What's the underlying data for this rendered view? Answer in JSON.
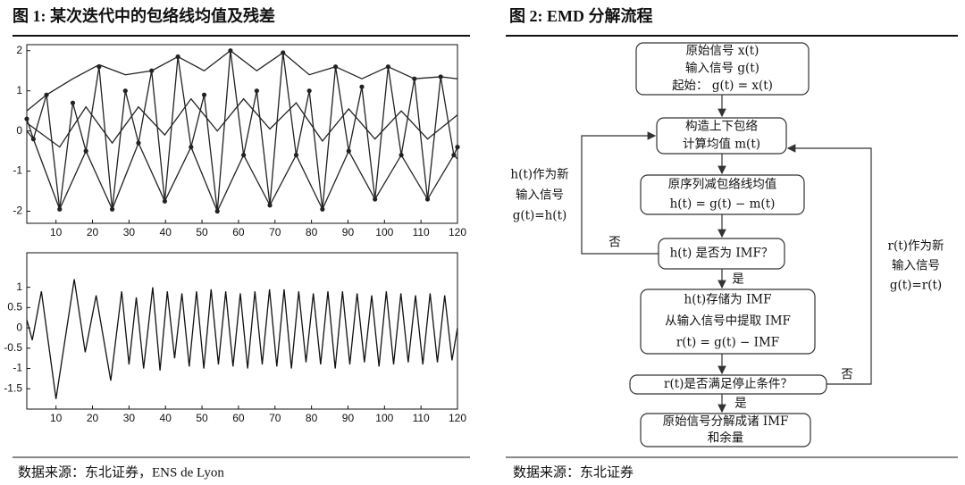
{
  "figure1": {
    "title": "图 1:  某次迭代中的包络线均值及残差",
    "source": "数据来源：东北证券，ENS de Lyon"
  },
  "chart_data": [
    {
      "type": "line",
      "xlim": [
        2,
        120
      ],
      "ylim": [
        -2.3,
        2.15
      ],
      "xticks": [
        10,
        20,
        30,
        40,
        50,
        60,
        70,
        80,
        90,
        100,
        110,
        120
      ],
      "yticks": [
        -2,
        -1,
        0,
        1,
        2
      ],
      "series": [
        {
          "color": "#222222",
          "markers": true,
          "x": [
            2,
            3.8,
            7.4,
            11,
            14.6,
            18.2,
            21.8,
            25.4,
            29,
            32.6,
            36.2,
            39.8,
            43.4,
            47,
            50.6,
            54.2,
            57.8,
            61.4,
            65,
            68.6,
            72.2,
            75.8,
            79.4,
            83,
            86.6,
            90.2,
            93.8,
            97.4,
            101,
            104.6,
            108.2,
            111.8,
            115.4,
            119,
            120
          ],
          "values": [
            0.3,
            -0.2,
            0.9,
            -1.95,
            0.7,
            -0.5,
            1.6,
            -1.95,
            1.0,
            -0.3,
            1.5,
            -1.75,
            1.85,
            -0.4,
            0.9,
            -2.0,
            2.0,
            -0.6,
            1.0,
            -1.85,
            1.95,
            -0.6,
            1.0,
            -1.95,
            1.6,
            -0.5,
            1.1,
            -1.7,
            1.6,
            -0.6,
            1.3,
            -1.7,
            1.35,
            -0.6,
            -0.4
          ]
        },
        {
          "color": "#222222",
          "x": [
            2,
            7.4,
            14.6,
            21.8,
            29,
            36.2,
            43.4,
            50.6,
            57.8,
            65,
            72.2,
            79.4,
            86.6,
            93.8,
            101,
            108.2,
            115.4,
            120
          ],
          "values": [
            0.5,
            0.9,
            1.3,
            1.65,
            1.4,
            1.5,
            1.85,
            1.5,
            2.0,
            1.5,
            1.95,
            1.4,
            1.6,
            1.3,
            1.6,
            1.3,
            1.35,
            1.3
          ]
        },
        {
          "color": "#222222",
          "x": [
            2,
            3.8,
            11,
            18.2,
            25.4,
            32.6,
            39.8,
            47,
            54.2,
            61.4,
            68.6,
            75.8,
            83,
            90.2,
            97.4,
            104.6,
            111.8,
            119,
            120
          ],
          "values": [
            0.0,
            -0.2,
            -1.95,
            -0.5,
            -1.95,
            -0.3,
            -1.75,
            -0.4,
            -2.0,
            -0.6,
            -1.85,
            -0.6,
            -1.95,
            -0.5,
            -1.7,
            -0.6,
            -1.7,
            -0.6,
            -0.7
          ]
        },
        {
          "color": "#222222",
          "x": [
            2,
            11,
            18.2,
            25.4,
            32.6,
            39.8,
            47,
            54.2,
            61.4,
            68.6,
            75.8,
            83,
            90.2,
            97.4,
            104.6,
            111.8,
            120
          ],
          "values": [
            0.2,
            -0.4,
            0.6,
            -0.3,
            0.6,
            -0.1,
            0.8,
            0.0,
            0.8,
            0.05,
            0.7,
            -0.25,
            0.55,
            -0.2,
            0.5,
            -0.2,
            0.4
          ]
        }
      ]
    },
    {
      "type": "line",
      "xlim": [
        2,
        120
      ],
      "ylim": [
        -2.0,
        1.85
      ],
      "xticks": [
        10,
        20,
        30,
        40,
        50,
        60,
        70,
        80,
        90,
        100,
        110,
        120
      ],
      "yticks": [
        -1.5,
        -1,
        -0.5,
        0,
        0.5,
        1
      ],
      "series": [
        {
          "color": "#111111",
          "x": [
            2,
            3.5,
            6,
            10,
            15,
            18,
            21,
            25,
            28,
            30,
            32,
            34,
            36.5,
            38.5,
            40.5,
            42.5,
            44.5,
            46.5,
            48.5,
            50.5,
            52.5,
            54.5,
            56.5,
            58.5,
            60.5,
            62.5,
            64.5,
            66.5,
            68.5,
            70.5,
            72.5,
            74.5,
            76.5,
            78.5,
            80.5,
            82.5,
            84.5,
            86.5,
            88.5,
            90.5,
            92.5,
            94.5,
            96.5,
            98.5,
            100.5,
            102.5,
            104.5,
            106.5,
            108.5,
            110.5,
            112.5,
            114.5,
            116.5,
            118.5,
            120
          ],
          "values": [
            0.2,
            -0.3,
            0.9,
            -1.75,
            1.2,
            -0.6,
            0.8,
            -1.3,
            0.9,
            -0.9,
            0.75,
            -1.0,
            1.0,
            -1.05,
            0.9,
            -0.75,
            0.85,
            -0.95,
            0.9,
            -1.0,
            0.95,
            -0.9,
            0.9,
            -0.95,
            0.85,
            -1.0,
            0.9,
            -0.9,
            0.95,
            -0.95,
            0.95,
            -1.0,
            0.9,
            -0.85,
            0.85,
            -0.9,
            0.9,
            -1.0,
            0.9,
            -0.9,
            0.85,
            -0.85,
            0.8,
            -0.95,
            0.9,
            -0.9,
            0.85,
            -0.85,
            0.8,
            -0.9,
            0.85,
            -0.85,
            0.8,
            -0.8,
            0.0
          ]
        }
      ]
    }
  ],
  "figure2": {
    "title": "图 2:  EMD 分解流程",
    "source": "数据来源：东北证券",
    "nodes": [
      {
        "lines": [
          "原始信号  x(t)",
          "输入信号  g(t)",
          "起始：  g(t) = x(t)"
        ]
      },
      {
        "lines": [
          "构造上下包络",
          "计算均值  m(t)"
        ]
      },
      {
        "lines": [
          "原序列减包络线均值",
          "h(t) = g(t) − m(t)"
        ]
      },
      {
        "lines": [
          "h(t)  是否为 IMF？"
        ]
      },
      {
        "lines": [
          "h(t)存储为 IMF",
          "从输入信号中提取 IMF",
          "r(t) = g(t) − IMF"
        ]
      },
      {
        "lines": [
          "r(t)是否满足停止条件？"
        ]
      },
      {
        "lines": [
          "原始信号分解成诸 IMF",
          "和余量"
        ]
      }
    ],
    "edge_labels": {
      "no_left": "否",
      "yes_1": "是",
      "yes_2": "是",
      "no_right": "否"
    },
    "left_note": [
      "h(t)作为新",
      "输入信号",
      "g(t)=h(t)"
    ],
    "right_note": [
      "r(t)作为新",
      "输入信号",
      "g(t)=r(t)"
    ]
  }
}
